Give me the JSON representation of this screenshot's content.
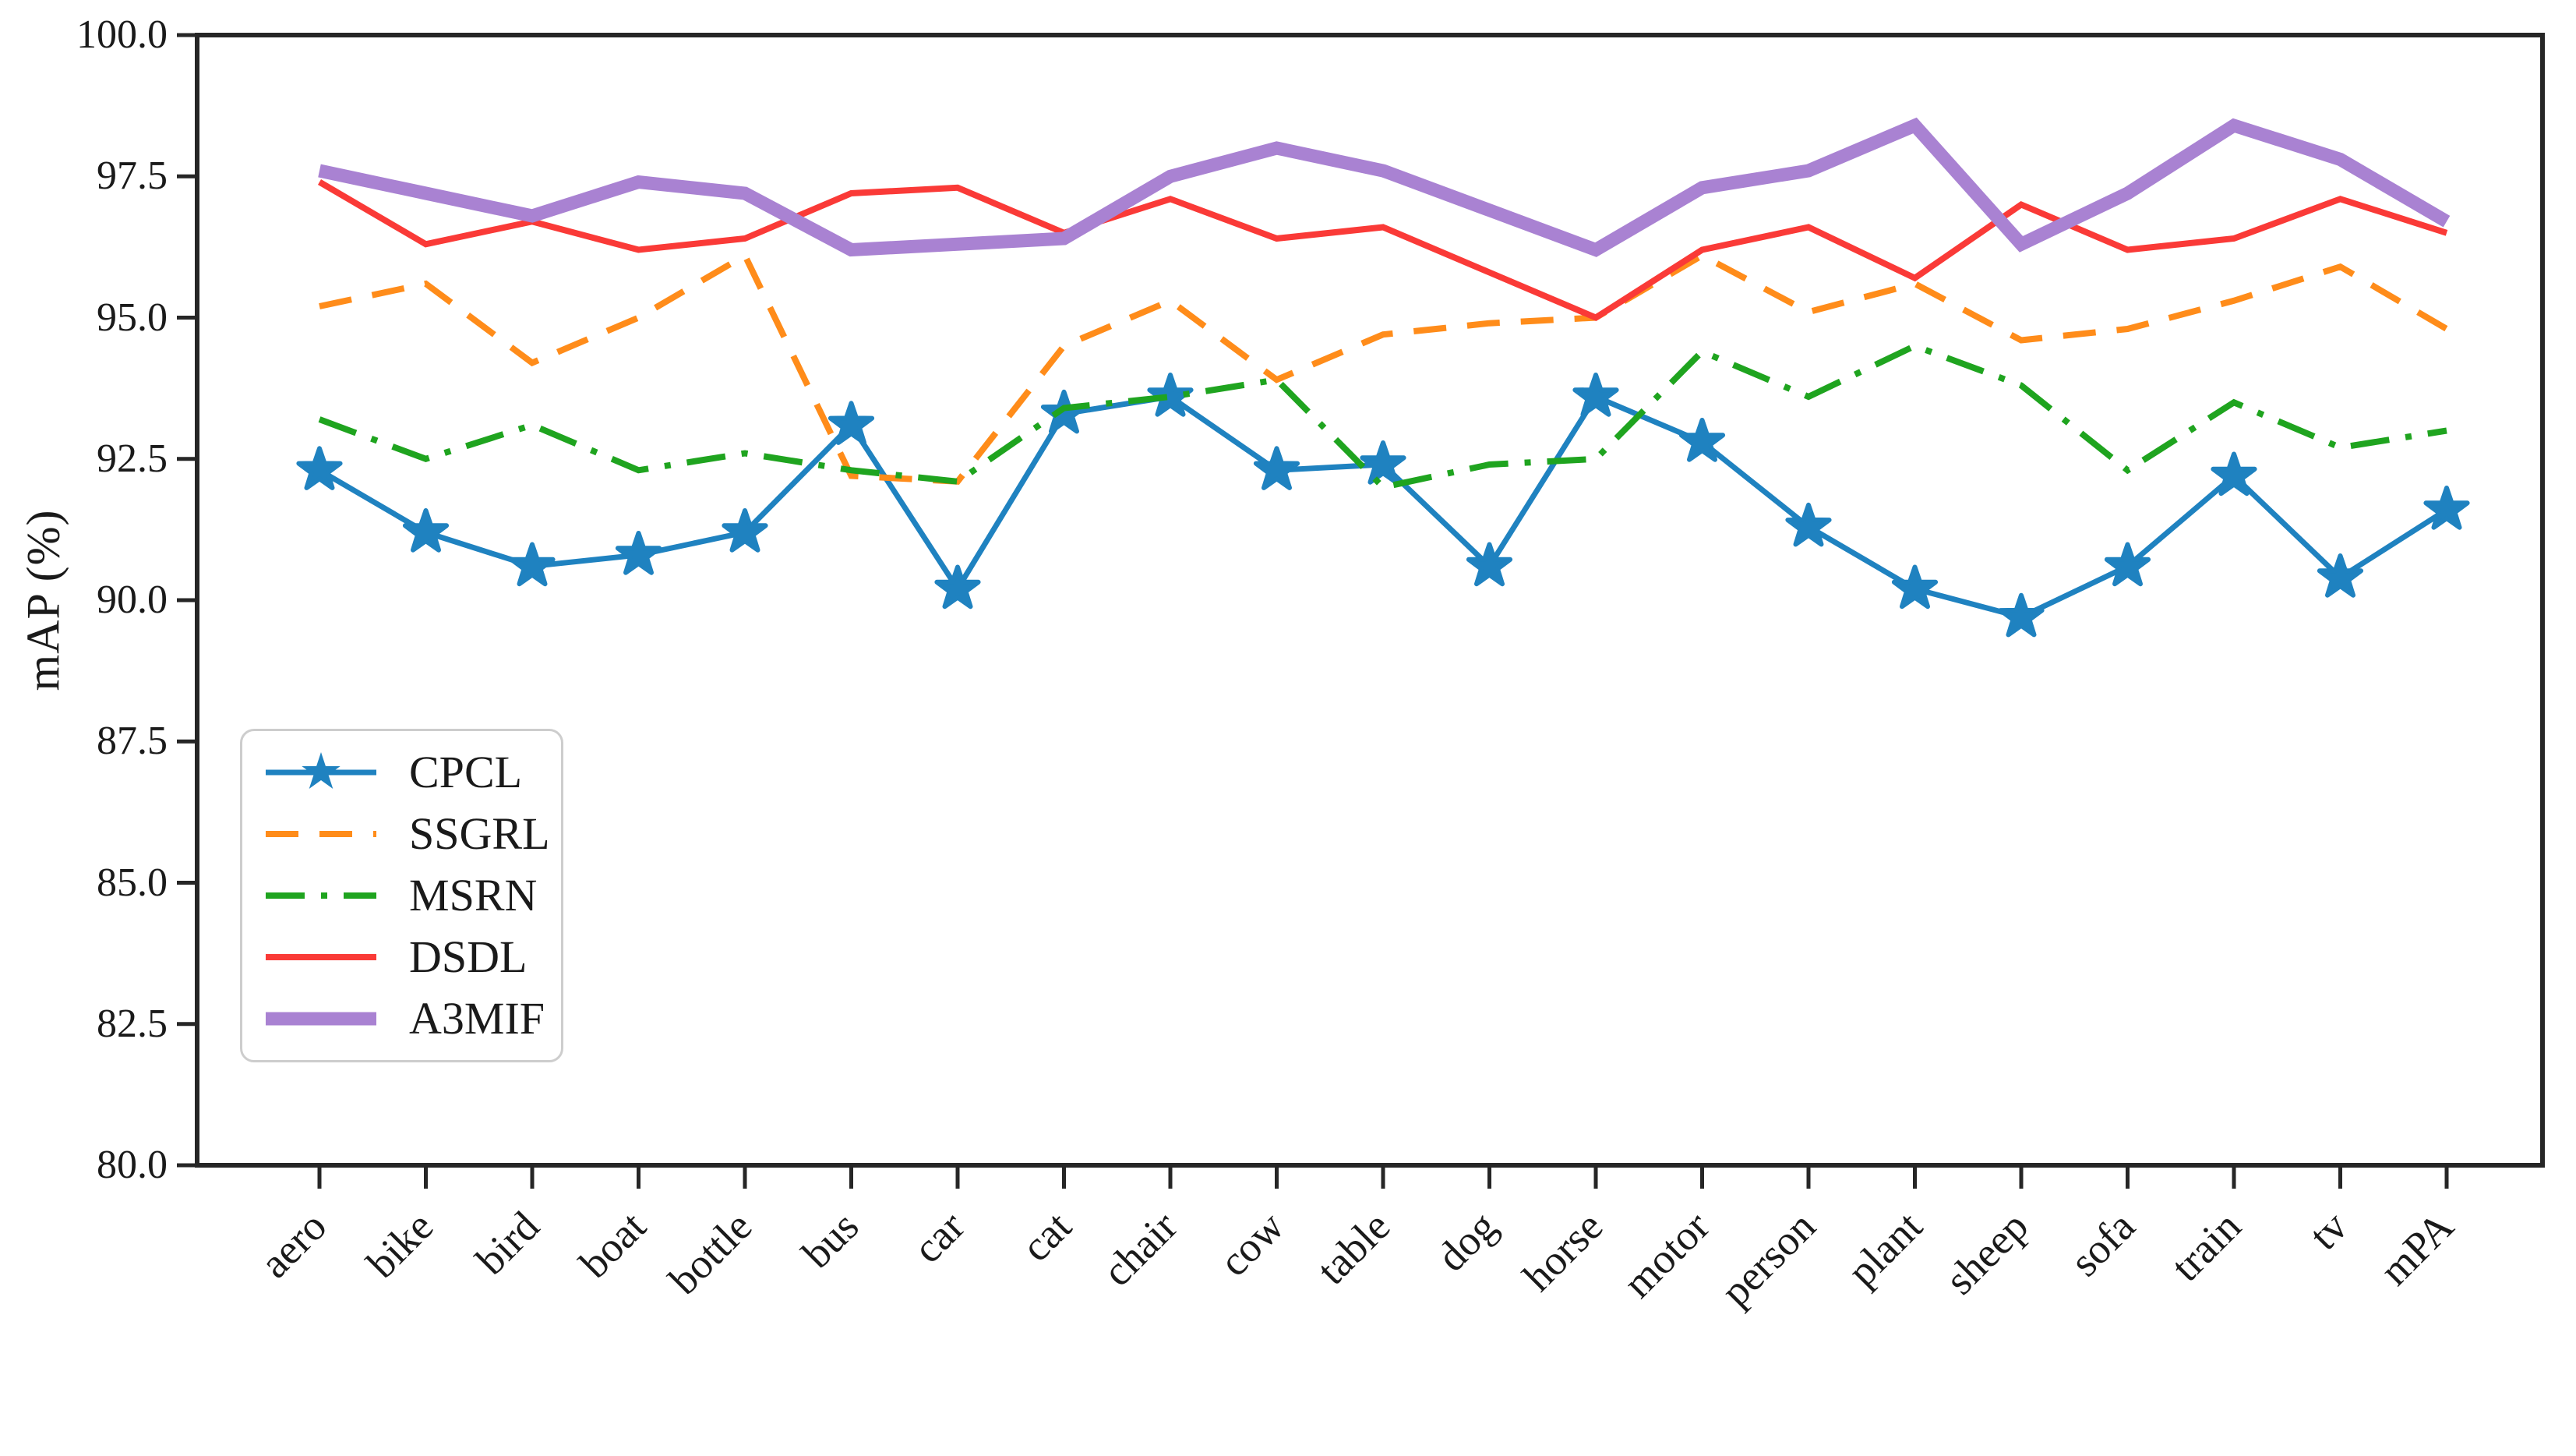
{
  "figure": {
    "y_axis_label": "mAP (%)",
    "frame_color": "#262626",
    "text_color": "#1a1a1a",
    "legend_border_color": "#cdcdcd",
    "background": "#ffffff"
  },
  "chart_data": {
    "type": "line",
    "title": "",
    "xlabel": "",
    "ylabel": "mAP (%)",
    "ylim": [
      80.0,
      100.0
    ],
    "ytick_labels": [
      "80.0",
      "82.5",
      "85.0",
      "87.5",
      "90.0",
      "92.5",
      "95.0",
      "97.5",
      "100.0"
    ],
    "ytick_values": [
      80.0,
      82.5,
      85.0,
      87.5,
      90.0,
      92.5,
      95.0,
      97.5,
      100.0
    ],
    "grid": false,
    "legend_position": "lower left",
    "x_tick_rotation_deg": 45,
    "categories": [
      "aero",
      "bike",
      "bird",
      "boat",
      "bottle",
      "bus",
      "car",
      "cat",
      "chair",
      "cow",
      "table",
      "dog",
      "horse",
      "motor",
      "person",
      "plant",
      "sheep",
      "sofa",
      "train",
      "tv",
      "mPA"
    ],
    "series": [
      {
        "name": "CPCL",
        "color": "#1f82c0",
        "style": "solid",
        "marker": "star",
        "linewidth": 7,
        "values": [
          92.3,
          91.2,
          90.6,
          90.8,
          91.2,
          93.1,
          90.2,
          93.3,
          93.6,
          92.3,
          92.4,
          90.6,
          93.6,
          92.8,
          91.3,
          90.2,
          89.7,
          90.6,
          92.2,
          90.4,
          91.6
        ]
      },
      {
        "name": "SSGRL",
        "color": "#ff8c1a",
        "style": "dashed",
        "marker": "none",
        "linewidth": 8,
        "values": [
          95.2,
          95.6,
          94.2,
          95.0,
          96.1,
          92.2,
          92.1,
          94.5,
          95.3,
          93.9,
          94.7,
          94.9,
          95.0,
          96.1,
          95.1,
          95.6,
          94.6,
          94.8,
          95.3,
          95.9,
          94.8
        ]
      },
      {
        "name": "MSRN",
        "color": "#1fa41f",
        "style": "dashdot",
        "marker": "none",
        "linewidth": 8,
        "values": [
          93.2,
          92.5,
          93.1,
          92.3,
          92.6,
          92.3,
          92.1,
          93.4,
          93.6,
          93.9,
          92.0,
          92.4,
          92.5,
          94.4,
          93.6,
          94.5,
          93.8,
          92.3,
          93.5,
          92.7,
          93.0
        ]
      },
      {
        "name": "DSDL",
        "color": "#fa3a37",
        "style": "solid",
        "marker": "none",
        "linewidth": 8,
        "values": [
          97.4,
          96.3,
          96.7,
          96.2,
          96.4,
          97.2,
          97.3,
          96.5,
          97.1,
          96.4,
          96.6,
          95.8,
          95.0,
          96.2,
          96.6,
          95.7,
          97.0,
          96.2,
          96.4,
          97.1,
          96.5
        ]
      },
      {
        "name": "A3MIF",
        "color": "#a982d2",
        "style": "solid",
        "marker": "none",
        "linewidth": 17,
        "values": [
          97.6,
          97.2,
          96.8,
          97.4,
          97.2,
          96.2,
          96.3,
          96.4,
          97.5,
          98.0,
          97.6,
          96.9,
          96.2,
          97.3,
          97.6,
          98.4,
          96.3,
          97.2,
          98.4,
          97.8,
          96.7
        ]
      }
    ]
  }
}
